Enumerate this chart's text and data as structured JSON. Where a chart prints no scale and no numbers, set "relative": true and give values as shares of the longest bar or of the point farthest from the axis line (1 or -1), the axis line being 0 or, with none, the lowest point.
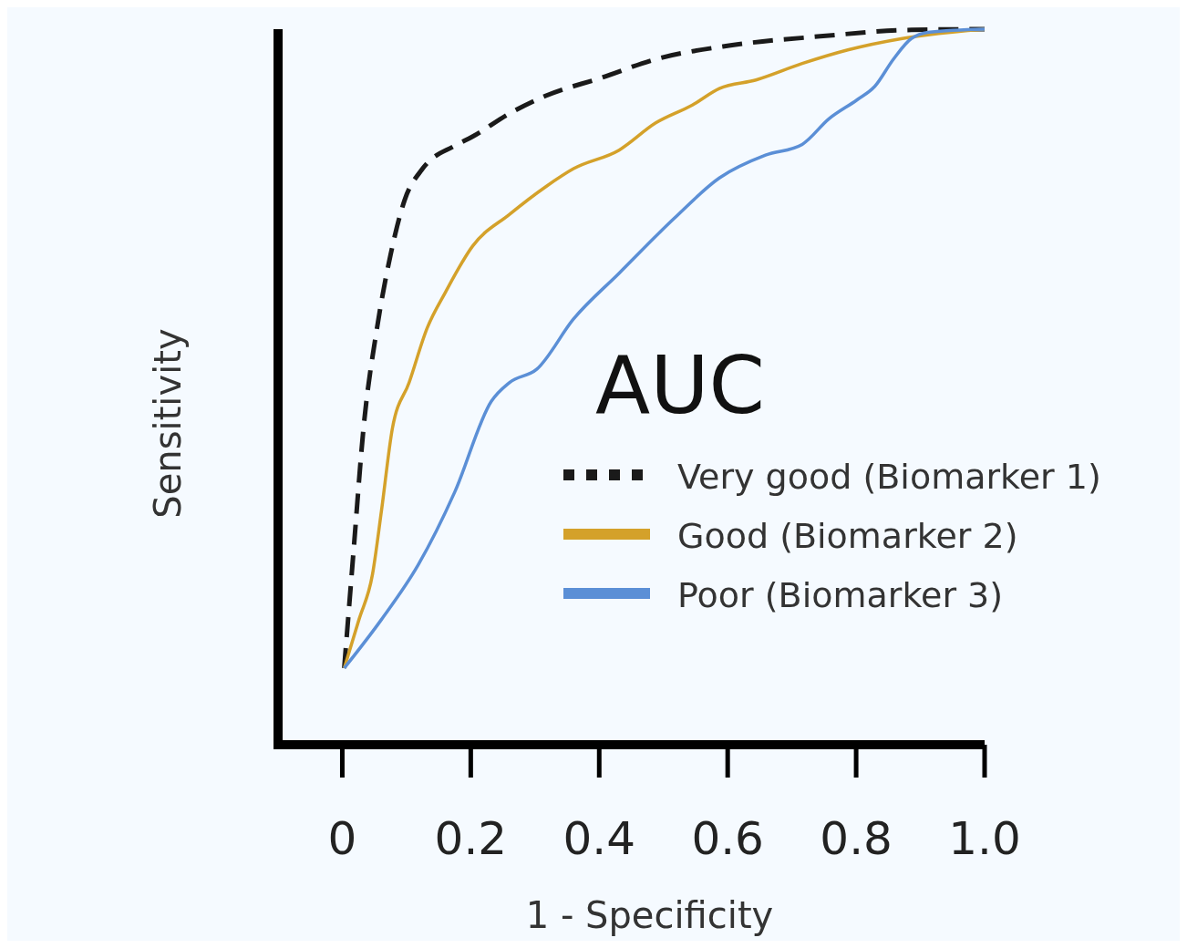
{
  "chart_data": {
    "type": "line",
    "relative": true,
    "xlabel": "1 - Specificity",
    "ylabel": "Sensitivity",
    "legend_title": "AUC",
    "legend": "right",
    "xlim": [
      -0.1,
      1.0
    ],
    "xticks": [
      {
        "value": 0,
        "label": "0"
      },
      0.2,
      0.4,
      0.6,
      0.8,
      {
        "value": 1.0,
        "label": "1.0"
      }
    ],
    "series": [
      {
        "name": "Very good (Biomarker 1)",
        "color": "#1a1a1a",
        "line_style": "dashed",
        "x": [
          0.003,
          0.018,
          0.033,
          0.054,
          0.075,
          0.097,
          0.125,
          0.175,
          0.203,
          0.26,
          0.317,
          0.403,
          0.488,
          0.602,
          0.744,
          0.886,
          1.0
        ],
        "values": [
          0.107,
          0.276,
          0.442,
          0.582,
          0.684,
          0.761,
          0.805,
          0.837,
          0.85,
          0.882,
          0.907,
          0.932,
          0.958,
          0.977,
          0.99,
          0.999,
          1.0
        ]
      },
      {
        "name": "Good (Biomarker 2)",
        "color": "#d4a12a",
        "line_style": "solid",
        "x": [
          0.003,
          0.026,
          0.047,
          0.061,
          0.078,
          0.104,
          0.132,
          0.161,
          0.203,
          0.26,
          0.317,
          0.36,
          0.431,
          0.488,
          0.545,
          0.587,
          0.644,
          0.716,
          0.787,
          0.872,
          1.0
        ],
        "values": [
          0.107,
          0.175,
          0.238,
          0.327,
          0.442,
          0.506,
          0.582,
          0.633,
          0.697,
          0.741,
          0.78,
          0.805,
          0.831,
          0.869,
          0.894,
          0.917,
          0.929,
          0.952,
          0.971,
          0.987,
          1.0
        ]
      },
      {
        "name": "Poor (Biomarker 3)",
        "color": "#5b8fd6",
        "line_style": "solid",
        "x": [
          0.003,
          0.061,
          0.118,
          0.175,
          0.232,
          0.26,
          0.303,
          0.36,
          0.431,
          0.516,
          0.587,
          0.659,
          0.716,
          0.758,
          0.801,
          0.829,
          0.858,
          0.886,
          0.915,
          1.0
        ],
        "values": [
          0.107,
          0.175,
          0.251,
          0.353,
          0.48,
          0.506,
          0.525,
          0.595,
          0.659,
          0.735,
          0.792,
          0.824,
          0.839,
          0.875,
          0.901,
          0.92,
          0.958,
          0.987,
          0.996,
          1.0
        ]
      }
    ]
  }
}
